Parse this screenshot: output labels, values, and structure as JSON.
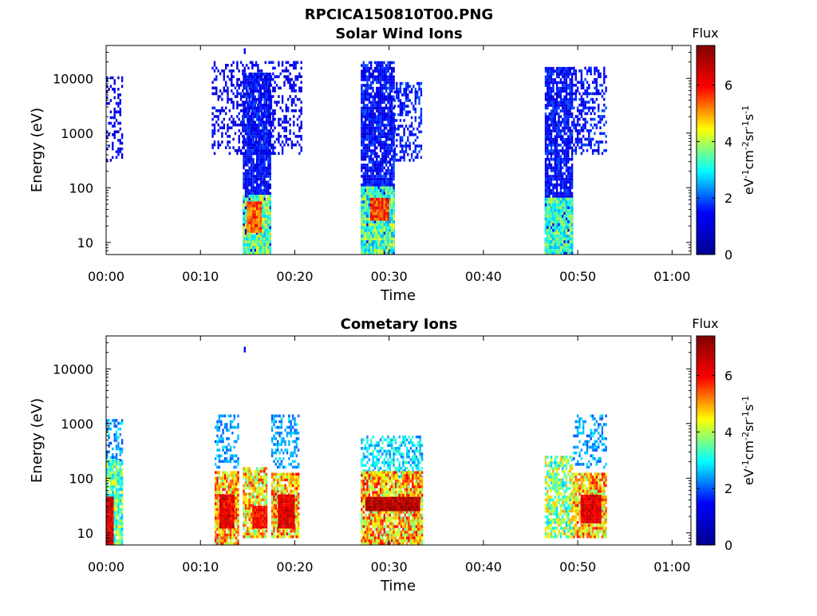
{
  "figure_title": "RPCICA150810T00.PNG",
  "colors": {
    "jet_stops": [
      "#00008f",
      "#0000ff",
      "#00ffff",
      "#ffff00",
      "#ff0000",
      "#800000"
    ],
    "axis": "#000000"
  },
  "chart_data": [
    {
      "type": "heatmap",
      "title": "Solar Wind Ions",
      "xlabel": "Time",
      "ylabel": "Energy (eV)",
      "yscale": "log",
      "xlim_minutes": [
        0,
        62
      ],
      "ylim": [
        6,
        40000
      ],
      "x_tick_labels": [
        "00:00",
        "00:10",
        "00:20",
        "00:30",
        "00:40",
        "00:50",
        "01:00"
      ],
      "x_tick_values_minutes": [
        0,
        10,
        20,
        30,
        40,
        50,
        60
      ],
      "y_tick_labels": [
        "10",
        "100",
        "1000",
        "10000"
      ],
      "y_tick_values": [
        10,
        100,
        1000,
        10000
      ],
      "colorbar": {
        "label": "eV-1cm-2sr-1s-1",
        "label_base": "eV",
        "label_sup1": "-1",
        "label_cm": "cm",
        "label_sup2": "-2",
        "label_sr": "sr",
        "label_sup3": "-1",
        "label_s": "s",
        "label_sup4": "-1",
        "title": "Flux",
        "range": [
          0,
          7.4
        ],
        "tick_labels": [
          "0",
          "2",
          "4",
          "6"
        ],
        "tick_values": [
          0,
          2,
          4,
          6
        ]
      },
      "clusters": [
        {
          "t_start": 0.0,
          "t_end": 1.8,
          "e_low": 300,
          "e_high": 10000,
          "density": 0.35,
          "flux": 1.2,
          "flux_spread": 0.6
        },
        {
          "t_start": 11.2,
          "t_end": 20.8,
          "e_low": 400,
          "e_high": 20000,
          "density": 0.35,
          "flux": 1.2,
          "flux_spread": 0.5
        },
        {
          "t_start": 14.5,
          "t_end": 17.5,
          "e_low": 6,
          "e_high": 12000,
          "density": 0.9,
          "flux": 1.4,
          "flux_spread": 0.6
        },
        {
          "t_start": 14.5,
          "t_end": 17.5,
          "e_low": 6,
          "e_high": 70,
          "density": 0.95,
          "flux": 3.6,
          "flux_spread": 1.0
        },
        {
          "t_start": 14.9,
          "t_end": 16.5,
          "e_low": 15,
          "e_high": 50,
          "density": 1.0,
          "flux": 5.4,
          "flux_spread": 0.6
        },
        {
          "t_start": 27.0,
          "t_end": 30.5,
          "e_low": 6,
          "e_high": 20000,
          "density": 0.85,
          "flux": 1.4,
          "flux_spread": 0.6
        },
        {
          "t_start": 27.0,
          "t_end": 30.5,
          "e_low": 6,
          "e_high": 100,
          "density": 0.95,
          "flux": 3.4,
          "flux_spread": 1.0
        },
        {
          "t_start": 28.0,
          "t_end": 30.0,
          "e_low": 25,
          "e_high": 60,
          "density": 1.0,
          "flux": 5.6,
          "flux_spread": 0.6
        },
        {
          "t_start": 30.5,
          "t_end": 33.5,
          "e_low": 300,
          "e_high": 8000,
          "density": 0.45,
          "flux": 1.5,
          "flux_spread": 0.5
        },
        {
          "t_start": 46.5,
          "t_end": 49.5,
          "e_low": 6,
          "e_high": 15000,
          "density": 0.85,
          "flux": 1.4,
          "flux_spread": 0.6
        },
        {
          "t_start": 46.5,
          "t_end": 49.5,
          "e_low": 6,
          "e_high": 60,
          "density": 0.95,
          "flux": 3.3,
          "flux_spread": 0.8
        },
        {
          "t_start": 49.5,
          "t_end": 53.0,
          "e_low": 400,
          "e_high": 15000,
          "density": 0.45,
          "flux": 1.5,
          "flux_spread": 0.5
        },
        {
          "t_start": 14.6,
          "t_end": 14.8,
          "e_low": 28000,
          "e_high": 34000,
          "density": 1.0,
          "flux": 1.2,
          "flux_spread": 0.1
        }
      ]
    },
    {
      "type": "heatmap",
      "title": "Cometary Ions",
      "xlabel": "Time",
      "ylabel": "Energy (eV)",
      "yscale": "log",
      "xlim_minutes": [
        0,
        62
      ],
      "ylim": [
        6,
        40000
      ],
      "x_tick_labels": [
        "00:00",
        "00:10",
        "00:20",
        "00:30",
        "00:40",
        "00:50",
        "01:00"
      ],
      "x_tick_values_minutes": [
        0,
        10,
        20,
        30,
        40,
        50,
        60
      ],
      "y_tick_labels": [
        "10",
        "100",
        "1000",
        "10000"
      ],
      "y_tick_values": [
        10,
        100,
        1000,
        10000
      ],
      "colorbar": {
        "label": "eV-1cm-2sr-1s-1",
        "label_base": "eV",
        "label_sup1": "-1",
        "label_cm": "cm",
        "label_sup2": "-2",
        "label_sr": "sr",
        "label_sup3": "-1",
        "label_s": "s",
        "label_sup4": "-1",
        "title": "Flux",
        "range": [
          0,
          7.4
        ],
        "tick_labels": [
          "0",
          "2",
          "4",
          "6"
        ],
        "tick_values": [
          0,
          2,
          4,
          6
        ]
      },
      "clusters": [
        {
          "t_start": 0.0,
          "t_end": 1.8,
          "e_low": 200,
          "e_high": 1200,
          "density": 0.4,
          "flux": 2.4,
          "flux_spread": 0.6
        },
        {
          "t_start": 0.0,
          "t_end": 1.8,
          "e_low": 6,
          "e_high": 200,
          "density": 0.9,
          "flux": 3.6,
          "flux_spread": 1.0
        },
        {
          "t_start": 0.0,
          "t_end": 0.8,
          "e_low": 6,
          "e_high": 45,
          "density": 1.0,
          "flux": 6.4,
          "flux_spread": 0.6
        },
        {
          "t_start": 11.5,
          "t_end": 14.0,
          "e_low": 150,
          "e_high": 1300,
          "density": 0.4,
          "flux": 2.4,
          "flux_spread": 0.5
        },
        {
          "t_start": 11.5,
          "t_end": 14.0,
          "e_low": 6,
          "e_high": 120,
          "density": 0.9,
          "flux": 4.8,
          "flux_spread": 1.2
        },
        {
          "t_start": 12.0,
          "t_end": 13.5,
          "e_low": 12,
          "e_high": 45,
          "density": 1.0,
          "flux": 6.2,
          "flux_spread": 0.6
        },
        {
          "t_start": 14.5,
          "t_end": 17.0,
          "e_low": 8,
          "e_high": 150,
          "density": 0.85,
          "flux": 4.6,
          "flux_spread": 1.2
        },
        {
          "t_start": 15.5,
          "t_end": 17.0,
          "e_low": 12,
          "e_high": 30,
          "density": 1.0,
          "flux": 6.0,
          "flux_spread": 0.5
        },
        {
          "t_start": 17.5,
          "t_end": 20.5,
          "e_low": 150,
          "e_high": 1300,
          "density": 0.4,
          "flux": 2.4,
          "flux_spread": 0.5
        },
        {
          "t_start": 17.5,
          "t_end": 20.5,
          "e_low": 8,
          "e_high": 120,
          "density": 0.9,
          "flux": 4.8,
          "flux_spread": 1.2
        },
        {
          "t_start": 18.2,
          "t_end": 20.0,
          "e_low": 12,
          "e_high": 45,
          "density": 1.0,
          "flux": 6.3,
          "flux_spread": 0.5
        },
        {
          "t_start": 27.0,
          "t_end": 33.5,
          "e_low": 100,
          "e_high": 600,
          "density": 0.55,
          "flux": 2.8,
          "flux_spread": 0.7
        },
        {
          "t_start": 27.0,
          "t_end": 33.5,
          "e_low": 6,
          "e_high": 120,
          "density": 0.9,
          "flux": 4.8,
          "flux_spread": 1.3
        },
        {
          "t_start": 27.5,
          "t_end": 33.3,
          "e_low": 25,
          "e_high": 45,
          "density": 1.0,
          "flux": 6.8,
          "flux_spread": 0.5
        },
        {
          "t_start": 46.5,
          "t_end": 49.5,
          "e_low": 8,
          "e_high": 250,
          "density": 0.75,
          "flux": 3.8,
          "flux_spread": 1.2
        },
        {
          "t_start": 49.5,
          "t_end": 53.0,
          "e_low": 150,
          "e_high": 1300,
          "density": 0.4,
          "flux": 2.4,
          "flux_spread": 0.5
        },
        {
          "t_start": 49.5,
          "t_end": 53.0,
          "e_low": 8,
          "e_high": 120,
          "density": 0.9,
          "flux": 4.8,
          "flux_spread": 1.2
        },
        {
          "t_start": 50.3,
          "t_end": 52.5,
          "e_low": 15,
          "e_high": 45,
          "density": 1.0,
          "flux": 6.3,
          "flux_spread": 0.5
        },
        {
          "t_start": 14.6,
          "t_end": 14.8,
          "e_low": 20000,
          "e_high": 24000,
          "density": 1.0,
          "flux": 1.2,
          "flux_spread": 0.1
        }
      ]
    }
  ]
}
